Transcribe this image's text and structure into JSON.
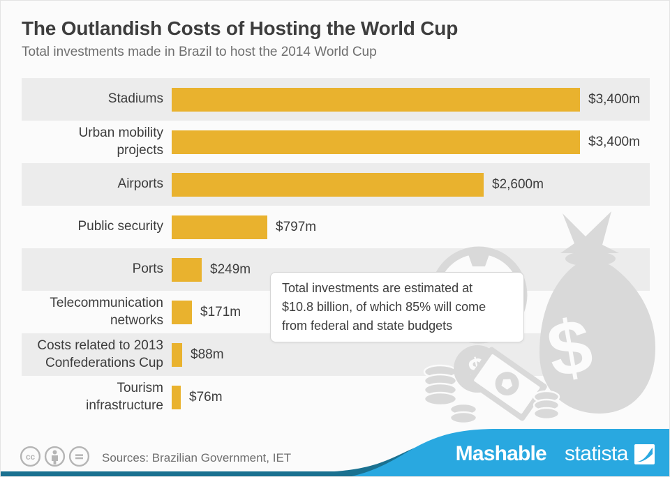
{
  "header": {
    "title": "The Outlandish Costs of Hosting the World Cup",
    "subtitle": "Total investments made in Brazil to host the 2014 World Cup"
  },
  "chart_data": {
    "type": "bar",
    "orientation": "horizontal",
    "title": "The Outlandish Costs of Hosting the World Cup",
    "subtitle": "Total investments made in Brazil to host the 2014 World Cup",
    "unit": "USD millions",
    "xlim": [
      0,
      3400
    ],
    "bar_color": "#e9b22e",
    "band_color": "#ececec",
    "categories": [
      "Stadiums",
      "Urban mobility projects",
      "Airports",
      "Public security",
      "Ports",
      "Telecommunication networks",
      "Costs related to 2013 Confederations Cup",
      "Tourism infrastructure"
    ],
    "values": [
      3400,
      3400,
      2600,
      797,
      249,
      171,
      88,
      76
    ],
    "rows": [
      {
        "label": "Stadiums",
        "value": 3400,
        "value_label": "$3,400m"
      },
      {
        "label": "Urban mobility\nprojects",
        "value": 3400,
        "value_label": "$3,400m"
      },
      {
        "label": "Airports",
        "value": 2600,
        "value_label": "$2,600m"
      },
      {
        "label": "Public security",
        "value": 797,
        "value_label": "$797m"
      },
      {
        "label": "Ports",
        "value": 249,
        "value_label": "$249m"
      },
      {
        "label": "Telecommunication\nnetworks",
        "value": 171,
        "value_label": "$171m"
      },
      {
        "label": "Costs related to 2013\nConfederations Cup",
        "value": 88,
        "value_label": "$88m"
      },
      {
        "label": "Tourism\ninfrastructure",
        "value": 76,
        "value_label": "$76m"
      }
    ],
    "annotation": "Total investments are estimated at\n$10.8 billion, of which 85% will come\nfrom federal and state budgets"
  },
  "watermark": {
    "icons": [
      "soccer-ball-icon",
      "money-bag-icon",
      "dollar-coin-icon",
      "banknote-icon",
      "coin-stack-icon"
    ],
    "color": "#d9d9d9"
  },
  "footer": {
    "license_icons": [
      "cc-icon",
      "attribution-icon",
      "no-derivatives-icon"
    ],
    "sources": "Sources: Brazilian Government, IET",
    "brands": {
      "mashable": "Mashable",
      "statista": "statista"
    },
    "colors": {
      "wave_blue": "#29a8e0",
      "wave_teal": "#1a7190"
    }
  }
}
